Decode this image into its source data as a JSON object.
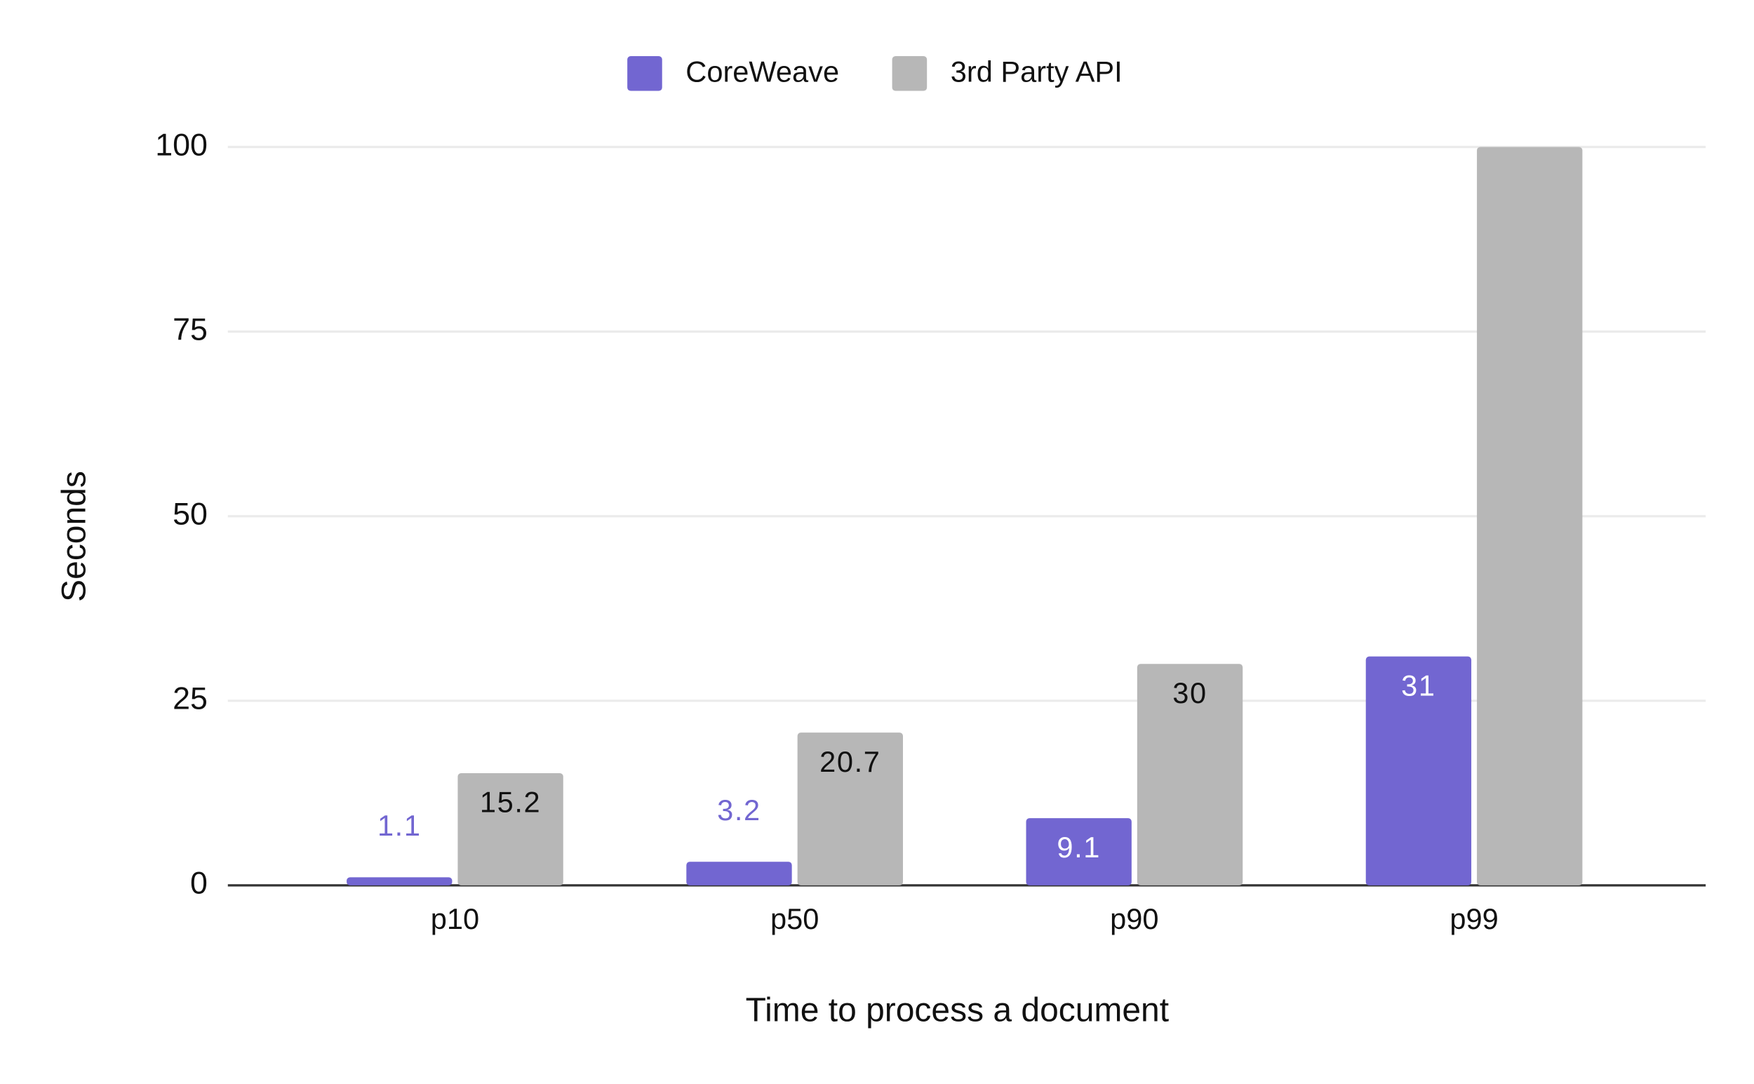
{
  "chart_data": {
    "type": "bar",
    "x_label": "Time to process a document",
    "y_label": "Seconds",
    "categories": [
      "p10",
      "p50",
      "p90",
      "p99"
    ],
    "series": [
      {
        "name": "CoreWeave",
        "color": "#7266d1",
        "values": [
          1.1,
          3.2,
          9.1,
          31
        ],
        "value_labels": [
          "1.1",
          "3.2",
          "9.1",
          "31"
        ]
      },
      {
        "name": "3rd Party API",
        "color": "#b7b7b7",
        "values": [
          15.2,
          20.7,
          30,
          100
        ],
        "value_labels": [
          "15.2",
          "20.7",
          "30",
          null
        ]
      }
    ],
    "ylim": [
      0,
      100
    ],
    "yticks": [
      0,
      25,
      50,
      75,
      100
    ],
    "grid": true,
    "legend": "top"
  }
}
